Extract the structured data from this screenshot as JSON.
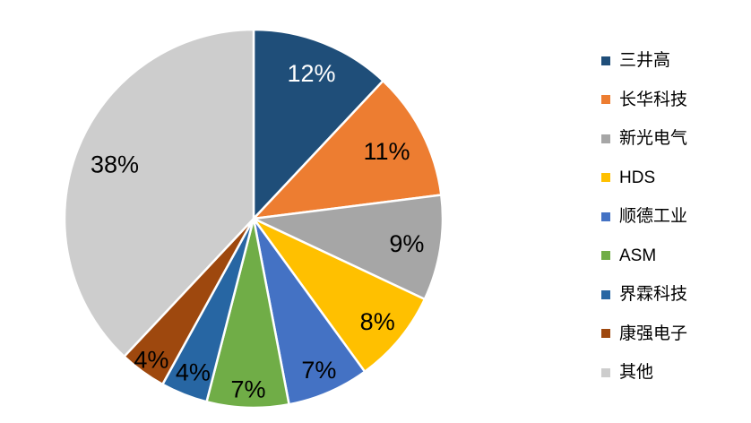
{
  "page": {
    "background_color": "#ffffff"
  },
  "chart_data": {
    "type": "pie",
    "title": "",
    "start_angle_deg": 0,
    "direction": "clockwise",
    "slice_separator_color": "#ffffff",
    "legend_position": "right",
    "label_format": "percent",
    "label_suffix": "%",
    "series": [
      {
        "name": "三井高",
        "value": 12,
        "label": "12%",
        "color": "#1F4E79",
        "label_color": "#FFFFFF",
        "label_r": 0.83
      },
      {
        "name": "长华科技",
        "value": 11,
        "label": "11%",
        "color": "#ED7D31",
        "label_color": "#000000",
        "label_r": 0.79
      },
      {
        "name": "新光电气",
        "value": 9,
        "label": "9%",
        "color": "#A6A6A6",
        "label_color": "#000000",
        "label_r": 0.82
      },
      {
        "name": "HDS",
        "value": 8,
        "label": "8%",
        "color": "#FFC000",
        "label_color": "#000000",
        "label_r": 0.85
      },
      {
        "name": "顺德工业",
        "value": 7,
        "label": "7%",
        "color": "#4472C4",
        "label_color": "#000000",
        "label_r": 0.87
      },
      {
        "name": "ASM",
        "value": 7,
        "label": "7%",
        "color": "#70AD47",
        "label_color": "#000000",
        "label_r": 0.9
      },
      {
        "name": "界霖科技",
        "value": 4,
        "label": "4%",
        "color": "#2766A3",
        "label_color": "#000000",
        "label_r": 0.87
      },
      {
        "name": "康强电子",
        "value": 4,
        "label": "4%",
        "color": "#9E480E",
        "label_color": "#000000",
        "label_r": 0.92
      },
      {
        "name": "其他",
        "value": 38,
        "label": "38%",
        "color": "#CDCDCD",
        "label_color": "#000000",
        "label_r": 0.79
      }
    ]
  }
}
